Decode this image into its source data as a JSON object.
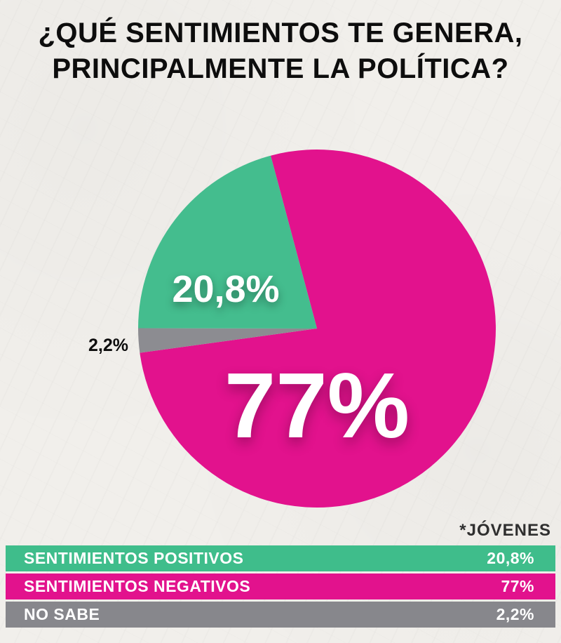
{
  "title": {
    "line1": "¿QUÉ SENTIMIENTOS TE GENERA,",
    "line2": "PRINCIPALMENTE LA POLÍTICA?"
  },
  "note": "*JÓVENES",
  "pie_labels": {
    "positivos": "20,8%",
    "negativos": "77%",
    "no_sabe": "2,2%"
  },
  "legend": [
    {
      "label": "SENTIMIENTOS POSITIVOS",
      "value": "20,8%",
      "color": "#3fbd8b"
    },
    {
      "label": "SENTIMIENTOS NEGATIVOS",
      "value": "77%",
      "color": "#e2128d"
    },
    {
      "label": "NO SABE",
      "value": "2,2%",
      "color": "#87878c"
    }
  ],
  "chart_data": {
    "type": "pie",
    "title": "¿QUÉ SENTIMIENTOS TE GENERA, PRINCIPALMENTE LA POLÍTICA?",
    "unit": "%",
    "audience_note": "*JÓVENES",
    "start_angle_deg": -15,
    "direction": "clockwise",
    "legend_position": "bottom",
    "slices": [
      {
        "key": "negativos",
        "label": "SENTIMIENTOS NEGATIVOS",
        "value": 77,
        "display": "77%",
        "color": "#e2128d"
      },
      {
        "key": "no_sabe",
        "label": "NO SABE",
        "value": 2.2,
        "display": "2,2%",
        "color": "#8c8c91"
      },
      {
        "key": "positivos",
        "label": "SENTIMIENTOS POSITIVOS",
        "value": 20.8,
        "display": "20,8%",
        "color": "#44bd8e"
      }
    ]
  }
}
